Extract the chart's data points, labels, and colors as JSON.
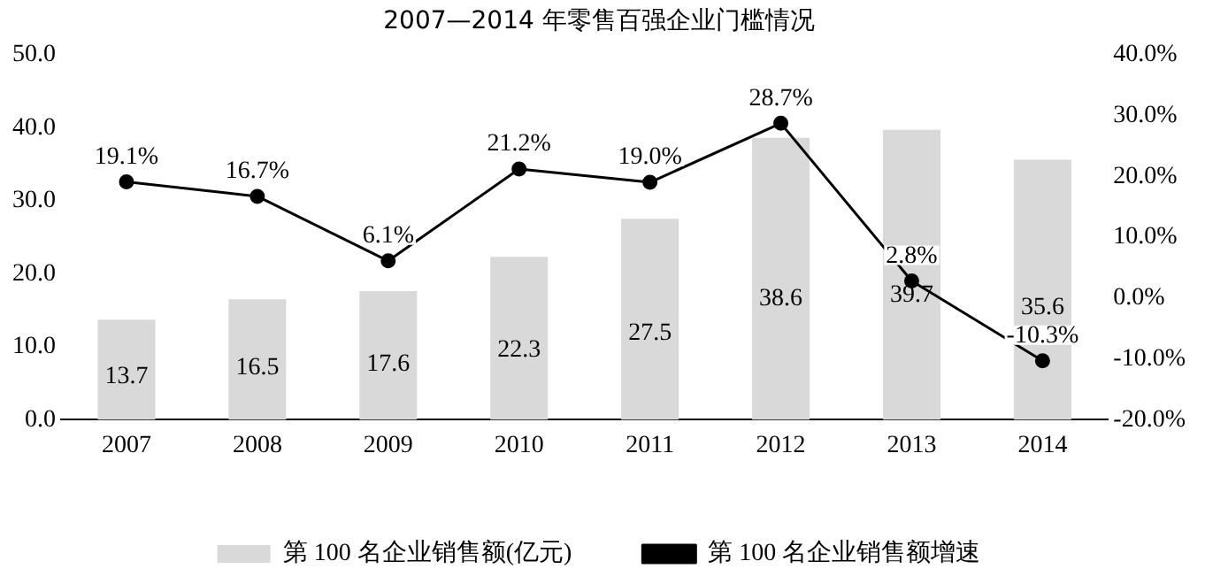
{
  "chart_data": {
    "type": "bar",
    "title": "2007—2014 年零售百强企业门槛情况",
    "categories": [
      "2007",
      "2008",
      "2009",
      "2010",
      "2011",
      "2012",
      "2013",
      "2014"
    ],
    "series": [
      {
        "name": "第 100 名企业销售额(亿元)",
        "type": "bar",
        "color": "#d9d9d9",
        "values": [
          13.7,
          16.5,
          17.6,
          22.3,
          27.5,
          38.6,
          39.7,
          35.6
        ],
        "value_labels": [
          "13.7",
          "16.5",
          "17.6",
          "22.3",
          "27.5",
          "38.6",
          "39.7",
          "35.6"
        ]
      },
      {
        "name": "第 100 名企业销售额增速",
        "type": "line",
        "axis": "y2",
        "color": "#000000",
        "marker": "circle",
        "values": [
          19.1,
          16.7,
          6.1,
          21.2,
          19.0,
          28.7,
          2.8,
          -10.3
        ],
        "value_labels": [
          "19.1%",
          "16.7%",
          "6.1%",
          "21.2%",
          "19.0%",
          "28.7%",
          "2.8%",
          "-10.3%"
        ]
      }
    ],
    "ylim": [
      0,
      50
    ],
    "yticks": [
      {
        "value": 0,
        "label": "0.0"
      },
      {
        "value": 10,
        "label": "10.0"
      },
      {
        "value": 20,
        "label": "20.0"
      },
      {
        "value": 30,
        "label": "30.0"
      },
      {
        "value": 40,
        "label": "40.0"
      },
      {
        "value": 50,
        "label": "50.0"
      }
    ],
    "y2lim": [
      -20,
      40
    ],
    "y2ticks": [
      {
        "value": -20,
        "label": "-20.0%"
      },
      {
        "value": -10,
        "label": "-10.0%"
      },
      {
        "value": 0,
        "label": "0.0%"
      },
      {
        "value": 10,
        "label": "10.0%"
      },
      {
        "value": 20,
        "label": "20.0%"
      },
      {
        "value": 30,
        "label": "30.0%"
      },
      {
        "value": 40,
        "label": "40.0%"
      }
    ],
    "grid": false,
    "legend": "bottom"
  }
}
